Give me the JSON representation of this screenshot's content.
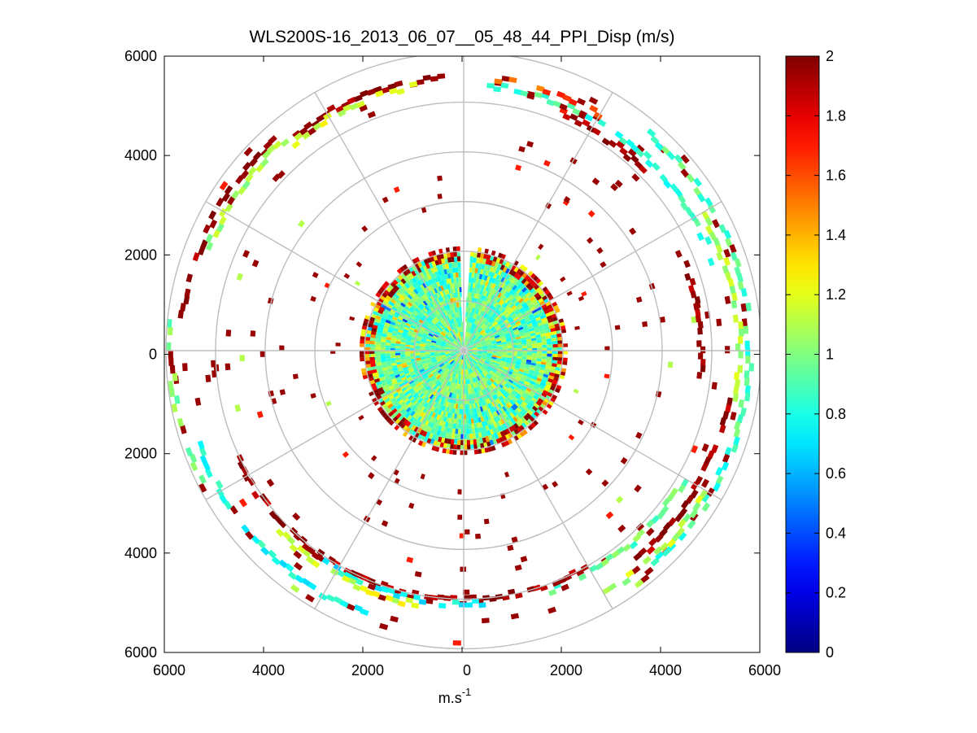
{
  "chart_data": {
    "type": "heatmap",
    "subtype": "polar-ppi-scan",
    "title": "WLS200S-16_2013_06_07__05_48_44_PPI_Disp (m/s)",
    "xlabel": "m.s",
    "xlabel_superscript": "-1",
    "ylabel": "",
    "xlim": [
      -6000,
      6000
    ],
    "ylim": [
      -6000,
      6000
    ],
    "x_ticks": [
      -6000,
      -4000,
      -2000,
      0,
      2000,
      4000,
      6000
    ],
    "y_ticks": [
      -6000,
      -4000,
      -2000,
      0,
      2000,
      4000,
      6000
    ],
    "x_tick_labels": [
      "6000",
      "4000",
      "2000",
      "0",
      "2000",
      "4000",
      "6000"
    ],
    "y_tick_labels": [
      "6000",
      "4000",
      "2000",
      "0",
      "2000",
      "4000",
      "6000"
    ],
    "polar_grid": {
      "rings": [
        1000,
        2000,
        3000,
        4000,
        5000,
        6000
      ],
      "spoke_angles_deg": [
        0,
        30,
        60,
        90,
        120,
        150,
        180,
        210,
        240,
        270,
        300,
        330
      ]
    },
    "colorbar": {
      "colormap": "jet",
      "range": [
        0,
        2
      ],
      "ticks": [
        0,
        0.2,
        0.4,
        0.6,
        0.8,
        1,
        1.2,
        1.4,
        1.6,
        1.8,
        2
      ],
      "tick_labels": [
        "0",
        "0.2",
        "0.4",
        "0.6",
        "0.8",
        "1",
        "1.2",
        "1.4",
        "1.6",
        "1.8",
        "2"
      ]
    },
    "scan": {
      "range_gate_m": 100,
      "no_data_sector_deg": [
        -3,
        3
      ],
      "near_field": {
        "r_max_m": 1900,
        "typical_value": 0.95,
        "spread": 0.15
      },
      "edge_band": {
        "r_min_m": 1800,
        "r_max_m": 2100,
        "typical_value": 1.9
      },
      "echo_arcs": [
        {
          "az_start": 5,
          "az_end": 70,
          "r": 5300,
          "value": 0.85
        },
        {
          "az_start": 5,
          "az_end": 30,
          "r": 5450,
          "value": 1.6
        },
        {
          "az_start": 20,
          "az_end": 45,
          "r": 5100,
          "value": 1.95
        },
        {
          "az_start": 40,
          "az_end": 110,
          "r": 5700,
          "value": 0.9
        },
        {
          "az_start": 60,
          "az_end": 100,
          "r": 5500,
          "value": 1.1
        },
        {
          "az_start": 65,
          "az_end": 95,
          "r": 4750,
          "value": 1.95
        },
        {
          "az_start": 100,
          "az_end": 140,
          "r": 5400,
          "value": 1.95
        },
        {
          "az_start": 110,
          "az_end": 140,
          "r": 5700,
          "value": 0.85
        },
        {
          "az_start": 120,
          "az_end": 150,
          "r": 5600,
          "value": 1.1
        },
        {
          "az_start": 120,
          "az_end": 160,
          "r": 5100,
          "value": 0.95
        },
        {
          "az_start": 150,
          "az_end": 215,
          "r": 4950,
          "value": 1.95
        },
        {
          "az_start": 175,
          "az_end": 215,
          "r": 5050,
          "value": 0.75
        },
        {
          "az_start": 190,
          "az_end": 225,
          "r": 5150,
          "value": 1.2
        },
        {
          "az_start": 200,
          "az_end": 250,
          "r": 5600,
          "value": 0.8
        },
        {
          "az_start": 215,
          "az_end": 245,
          "r": 5000,
          "value": 1.95
        },
        {
          "az_start": 240,
          "az_end": 275,
          "r": 5850,
          "value": 1.0
        },
        {
          "az_start": 275,
          "az_end": 320,
          "r": 5650,
          "value": 1.95
        },
        {
          "az_start": 290,
          "az_end": 320,
          "r": 5500,
          "value": 1.1
        },
        {
          "az_start": 320,
          "az_end": 355,
          "r": 5450,
          "value": 1.95
        },
        {
          "az_start": 320,
          "az_end": 350,
          "r": 5350,
          "value": 1.2
        }
      ]
    }
  },
  "colors": {
    "grid": "#bdbdbd",
    "axes": "#000000",
    "background": "#ffffff"
  }
}
